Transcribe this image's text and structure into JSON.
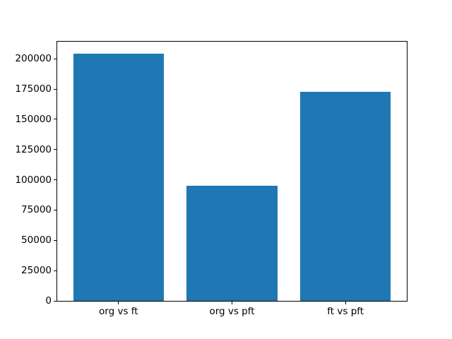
{
  "figure": {
    "background": "#ffffff",
    "spine_color": "#000000",
    "text_color": "#000000"
  },
  "chart_data": {
    "type": "bar",
    "title": "",
    "xlabel": "",
    "ylabel": "",
    "categories": [
      "org vs ft",
      "org vs pft",
      "ft vs pft"
    ],
    "values": [
      204500,
      95000,
      173000
    ],
    "bar_color": "#1f77b4",
    "bar_width_fraction": 0.8,
    "ylim": [
      0,
      214100
    ],
    "yticks": [
      0,
      25000,
      50000,
      75000,
      100000,
      125000,
      150000,
      175000,
      200000
    ],
    "ytick_labels": [
      "0",
      "25000",
      "50000",
      "75000",
      "100000",
      "125000",
      "150000",
      "175000",
      "200000"
    ],
    "grid": false,
    "legend": null
  }
}
